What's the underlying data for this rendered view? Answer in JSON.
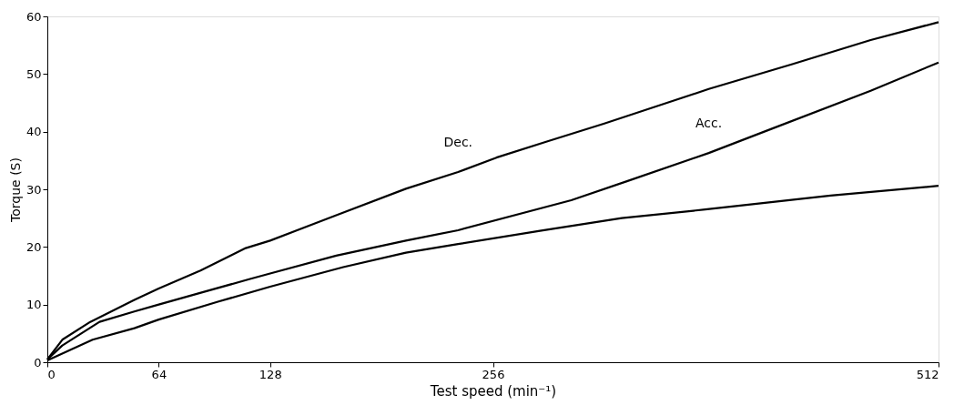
{
  "chart_data": {
    "type": "line",
    "xlabel": "Test speed (min⁻¹)",
    "ylabel": "Torque (S)",
    "xlim": [
      0,
      512
    ],
    "xticks": [
      0,
      64,
      128,
      256,
      512
    ],
    "ylim": [
      0,
      60
    ],
    "yticks": [
      0,
      10,
      20,
      30,
      40,
      50,
      60
    ],
    "grid": false,
    "legend": false,
    "marker": "none",
    "line_style": "solid",
    "series": [
      {
        "name": "Dec.",
        "color": "#000000",
        "x": [
          0,
          8.6,
          24.7,
          50,
          64,
          88,
          114,
          128,
          166,
          206,
          236,
          258,
          287,
          320,
          380,
          428,
          473,
          512
        ],
        "values": [
          0.5,
          3.9,
          7,
          10.8,
          12.8,
          15.9,
          19.8,
          21.1,
          25.5,
          30.1,
          33,
          35.5,
          38.3,
          41.4,
          47.4,
          51.7,
          55.9,
          59
        ]
      },
      {
        "name": "Acc.",
        "color": "#000000",
        "x": [
          0,
          8.6,
          30,
          50,
          64,
          91,
          116,
          128,
          166,
          206,
          236,
          301,
          333,
          380,
          417,
          473,
          512
        ],
        "values": [
          0.5,
          2.9,
          7,
          8.8,
          10,
          12.3,
          14.4,
          15.4,
          18.5,
          21.1,
          22.9,
          28.1,
          31.4,
          36.3,
          40.6,
          47.1,
          52
        ]
      },
      {
        "color": "#000000",
        "x": [
          0,
          26,
          50,
          64,
          98,
          128,
          170,
          206,
          236,
          283,
          330,
          378,
          450,
          512
        ],
        "values": [
          0.3,
          3.9,
          5.9,
          7.4,
          10.5,
          13.1,
          16.5,
          19,
          20.5,
          22.8,
          25,
          26.5,
          28.9,
          30.6
        ]
      }
    ]
  }
}
